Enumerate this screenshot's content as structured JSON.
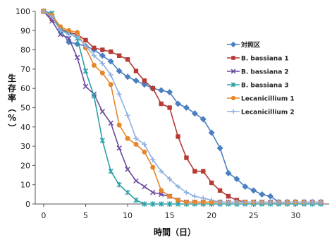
{
  "chart_data": {
    "type": "line",
    "xlabel": "時間（日）",
    "ylabel": "生存率（%）",
    "xlim": [
      -1,
      34
    ],
    "ylim": [
      0,
      100
    ],
    "xticks": [
      0,
      5,
      10,
      15,
      20,
      25,
      30
    ],
    "yticks": [
      0,
      10,
      20,
      30,
      40,
      50,
      60,
      70,
      80,
      90,
      100
    ],
    "grid": false,
    "legend": "right",
    "series": [
      {
        "name": "対照区",
        "color": "#4a7fc1",
        "marker": "diamond",
        "x": [
          0,
          1,
          2,
          3,
          4,
          5,
          6,
          7,
          8,
          9,
          10,
          11,
          12,
          13,
          14,
          15,
          16,
          17,
          18,
          19,
          20,
          21,
          22,
          23,
          24,
          25,
          26,
          27,
          28,
          29,
          30,
          31,
          32,
          33
        ],
        "y": [
          100,
          97,
          90,
          84,
          83,
          82,
          80,
          77,
          74,
          69,
          66,
          64,
          62,
          60,
          59,
          58,
          52,
          50,
          47,
          44,
          37,
          29,
          16,
          13,
          9,
          7,
          5,
          4,
          1,
          1,
          1,
          1,
          1,
          1
        ]
      },
      {
        "name": "B. bassiana 1",
        "color": "#b63a35",
        "marker": "square",
        "x": [
          0,
          1,
          2,
          3,
          4,
          5,
          6,
          7,
          8,
          9,
          10,
          11,
          12,
          13,
          14,
          15,
          16,
          17,
          18,
          19,
          20,
          21,
          22,
          23,
          24,
          25,
          26,
          27,
          28,
          29,
          30,
          31,
          32,
          33
        ],
        "y": [
          100,
          96,
          91,
          89,
          88,
          85,
          81,
          80,
          79,
          77,
          75,
          69,
          64,
          60,
          52,
          50,
          35,
          24,
          17,
          17,
          11,
          7,
          4,
          2,
          1,
          1,
          1,
          1,
          1,
          1,
          1,
          1,
          1,
          1
        ]
      },
      {
        "name": "B. bassiana 2",
        "color": "#6a4a9c",
        "marker": "x",
        "x": [
          0,
          1,
          2,
          3,
          4,
          5,
          6,
          7,
          8,
          9,
          10,
          11,
          12,
          13,
          14,
          15,
          16,
          17,
          18,
          19,
          20,
          21,
          22,
          23,
          24,
          25,
          26,
          27,
          28,
          29,
          30,
          31,
          32,
          33
        ],
        "y": [
          100,
          95,
          88,
          86,
          76,
          61,
          57,
          48,
          42,
          29,
          18,
          12,
          9,
          6,
          5,
          4,
          2,
          1,
          1,
          1,
          1,
          1,
          1,
          1,
          1,
          1,
          1,
          1,
          1,
          1,
          1,
          1,
          1,
          1
        ]
      },
      {
        "name": "B. bassiana 3",
        "color": "#2aa0a8",
        "marker": "asterisk",
        "x": [
          0,
          1,
          2,
          3,
          4,
          5,
          6,
          7,
          8,
          9,
          10,
          11,
          12,
          13,
          14,
          15,
          16,
          17,
          18,
          19,
          20,
          21,
          22,
          23,
          24,
          25,
          26,
          27,
          28,
          29,
          30,
          31,
          32,
          33
        ],
        "y": [
          100,
          99,
          90,
          89,
          86,
          69,
          56,
          33,
          17,
          10,
          6,
          2,
          0,
          0,
          0,
          0,
          0,
          0,
          0,
          0,
          0,
          0,
          0,
          0,
          0,
          0,
          0,
          0,
          0,
          0,
          0,
          0,
          0,
          0
        ]
      },
      {
        "name": "Lecanicillium 1",
        "color": "#e5862a",
        "marker": "circle",
        "x": [
          0,
          1,
          2,
          3,
          4,
          5,
          6,
          7,
          8,
          9,
          10,
          11,
          12,
          13,
          14,
          15,
          16,
          17,
          18,
          19,
          20,
          21,
          22,
          23,
          24,
          25,
          26,
          27,
          28,
          29,
          30,
          31,
          32,
          33
        ],
        "y": [
          100,
          98,
          92,
          90,
          89,
          81,
          72,
          68,
          62,
          41,
          34,
          31,
          27,
          19,
          7,
          4,
          2,
          1,
          1,
          1,
          1,
          1,
          1,
          1,
          1,
          1,
          1,
          1,
          1,
          1,
          1,
          1,
          1,
          1
        ]
      },
      {
        "name": "Lecanicillium 2",
        "color": "#8fb0e0",
        "marker": "plus",
        "x": [
          0,
          1,
          2,
          3,
          4,
          5,
          6,
          7,
          8,
          9,
          10,
          11,
          12,
          13,
          14,
          15,
          16,
          17,
          18,
          19,
          20,
          21,
          22,
          23,
          24,
          25,
          26,
          27,
          28,
          29,
          30,
          31,
          32,
          33
        ],
        "y": [
          100,
          97,
          90,
          88,
          87,
          82,
          77,
          73,
          67,
          57,
          46,
          34,
          31,
          23,
          17,
          13,
          9,
          6,
          4,
          3,
          2,
          1,
          1,
          1,
          1,
          1,
          1,
          1,
          1,
          1,
          1,
          1,
          1,
          1
        ]
      }
    ]
  }
}
